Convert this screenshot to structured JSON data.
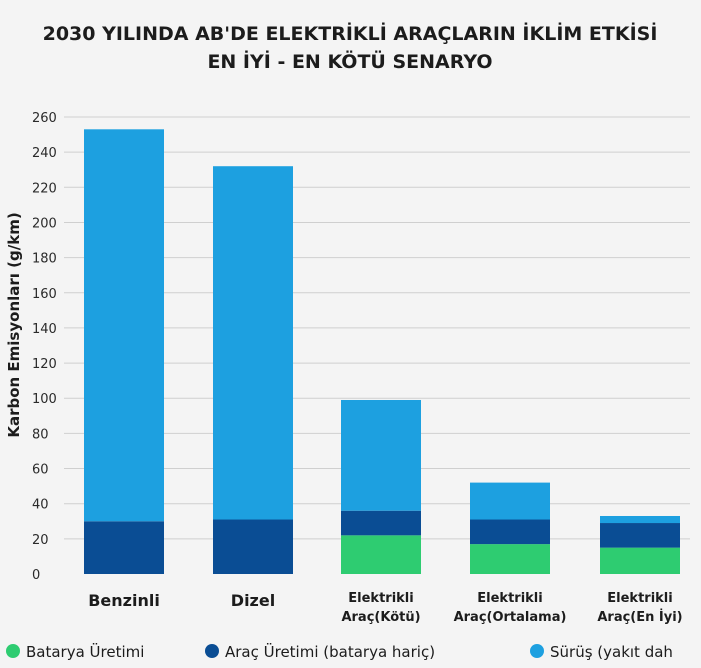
{
  "chart_data": {
    "type": "bar",
    "stacked": true,
    "title_line1": "2030 YILINDA AB'DE ELEKTRİKLİ ARAÇLARIN İKLİM ETKİSİ",
    "title_line2": "EN İYİ - EN KÖTÜ SENARYO",
    "ylabel": "Karbon Emisyonları (g/km)",
    "xlabel": "",
    "ylim": [
      0,
      260
    ],
    "yticks": [
      0,
      20,
      40,
      60,
      80,
      100,
      120,
      140,
      160,
      180,
      200,
      220,
      240,
      260
    ],
    "grid": true,
    "legend_position": "bottom",
    "categories": [
      {
        "line1": "Benzinli",
        "line2": ""
      },
      {
        "line1": "Dizel",
        "line2": ""
      },
      {
        "line1": "Elektrikli",
        "line2": "Araç(Kötü)"
      },
      {
        "line1": "Elektrikli",
        "line2": "Araç(Ortalama)"
      },
      {
        "line1": "Elektrikli",
        "line2": "Araç(En İyi)"
      }
    ],
    "series": [
      {
        "name": "Batarya Üretimi",
        "color": "#2ecc71",
        "values": [
          0,
          0,
          22,
          17,
          15
        ]
      },
      {
        "name": "Araç Üretimi (batarya hariç)",
        "color": "#0a4d94",
        "values": [
          30,
          31,
          14,
          14,
          14
        ]
      },
      {
        "name": "Sürüş (yakıt dah",
        "color": "#1da0e0",
        "values": [
          223,
          201,
          63,
          21,
          4
        ]
      }
    ]
  }
}
